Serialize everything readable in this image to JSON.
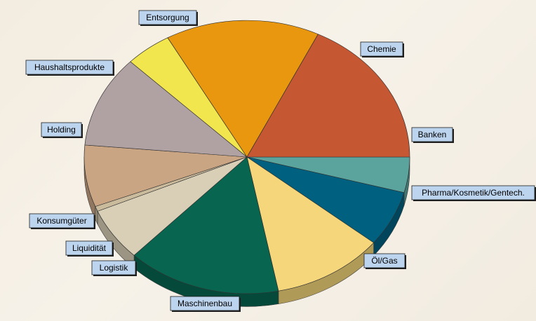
{
  "chart_data": {
    "type": "pie",
    "style": "3d-tilted",
    "legend": "none",
    "labels": [
      "Banken",
      "Pharma/Kosmetik/Gentech.",
      "Öl/Gas",
      "Maschinenbau",
      "Logistik",
      "Liquidität",
      "Konsumgüter",
      "Holding",
      "Haushaltsprodukte",
      "Entsorgung",
      "Chemie"
    ],
    "values": [
      4.2,
      6.6,
      11.1,
      15.3,
      6.3,
      0.6,
      7.3,
      10.9,
      4.6,
      15.3,
      17.8
    ],
    "unit": "%",
    "colors": [
      "#5ba49e",
      "#00607f",
      "#f5d67a",
      "#076550",
      "#d9cfb6",
      "#c9bb9c",
      "#c9a584",
      "#b0a1a3",
      "#f2e64e",
      "#e8970f",
      "#c65733"
    ]
  }
}
